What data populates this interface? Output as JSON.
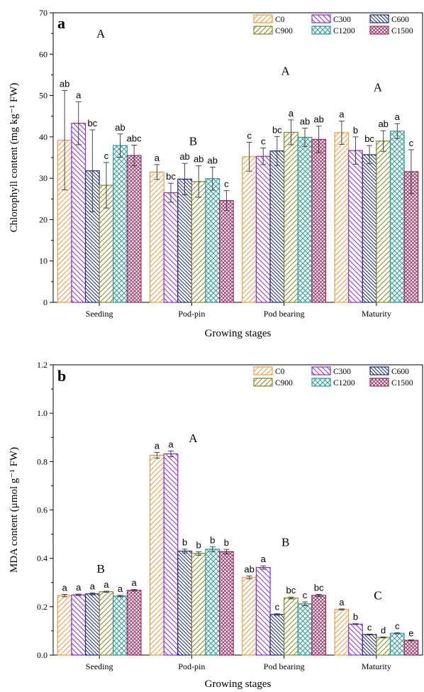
{
  "chart_data": [
    {
      "panel": "a",
      "type": "bar",
      "ylabel": "Chlorophyll content (mg kg⁻¹ FW)",
      "xlabel": "Growing stages",
      "ylim": [
        0,
        70
      ],
      "yticks": [
        0,
        10,
        20,
        30,
        40,
        50,
        60,
        70
      ],
      "ytick_labels": [
        "0",
        "10",
        "20",
        "30",
        "40",
        "50",
        "60",
        "70"
      ],
      "categories": [
        "Seeding",
        "Pod-pin",
        "Pod bearing",
        "Maturity"
      ],
      "group_letters": [
        "A",
        "B",
        "A",
        "A"
      ],
      "group_letter_y": [
        64,
        38,
        55,
        51
      ],
      "legend_position": "top-right",
      "series": [
        {
          "name": "C0",
          "values": [
            39.2,
            31.5,
            35.2,
            41.0
          ],
          "errors": [
            12.0,
            1.8,
            3.5,
            2.8
          ],
          "labels": [
            "ab",
            "a",
            "c",
            "a"
          ]
        },
        {
          "name": "C300",
          "values": [
            43.3,
            26.5,
            35.3,
            36.7
          ],
          "errors": [
            5.2,
            2.3,
            2.0,
            3.3
          ],
          "labels": [
            "a",
            "bc",
            "c",
            "b"
          ]
        },
        {
          "name": "C600",
          "values": [
            31.8,
            29.8,
            36.6,
            35.7
          ],
          "errors": [
            9.9,
            3.8,
            3.5,
            2.2
          ],
          "labels": [
            "bc",
            "ab",
            "bc",
            "bc"
          ]
        },
        {
          "name": "C900",
          "values": [
            28.3,
            29.2,
            41.1,
            39.0
          ],
          "errors": [
            5.5,
            3.8,
            3.0,
            2.5
          ],
          "labels": [
            "c",
            "ab",
            "a",
            "ab"
          ]
        },
        {
          "name": "C1200",
          "values": [
            37.9,
            29.9,
            39.9,
            41.4
          ],
          "errors": [
            2.8,
            2.8,
            2.2,
            1.8
          ],
          "labels": [
            "ab",
            "ab",
            "ab",
            "a"
          ]
        },
        {
          "name": "C1500",
          "values": [
            35.5,
            24.6,
            39.4,
            31.6
          ],
          "errors": [
            2.5,
            2.4,
            3.2,
            5.3
          ],
          "labels": [
            "abc",
            "c",
            "ab",
            "c"
          ]
        }
      ]
    },
    {
      "panel": "b",
      "type": "bar",
      "ylabel": "MDA content (μmol g⁻¹ FW)",
      "xlabel": "Growing stages",
      "ylim": [
        0,
        1.2
      ],
      "yticks": [
        0,
        0.2,
        0.4,
        0.6,
        0.8,
        1.0,
        1.2
      ],
      "ytick_labels": [
        "0.0",
        "0.2",
        "0.4",
        "0.6",
        "0.8",
        "1.0",
        "1.2"
      ],
      "categories": [
        "Seeding",
        "Pod-pin",
        "Pod bearing",
        "Maturity"
      ],
      "group_letters": [
        "B",
        "A",
        "B",
        "C"
      ],
      "group_letter_y": [
        0.34,
        0.88,
        0.45,
        0.23
      ],
      "legend_position": "top-right",
      "series": [
        {
          "name": "C0",
          "values": [
            0.246,
            0.826,
            0.321,
            0.189
          ],
          "errors": [
            0.005,
            0.012,
            0.006,
            0.002
          ],
          "labels": [
            "a",
            "a",
            "ab",
            "a"
          ]
        },
        {
          "name": "C300",
          "values": [
            0.249,
            0.832,
            0.362,
            0.128
          ],
          "errors": [
            0.003,
            0.012,
            0.007,
            0.002
          ],
          "labels": [
            "a",
            "a",
            "a",
            "b"
          ]
        },
        {
          "name": "C600",
          "values": [
            0.253,
            0.43,
            0.168,
            0.085
          ],
          "errors": [
            0.004,
            0.008,
            0.003,
            0.002
          ],
          "labels": [
            "a",
            "b",
            "c",
            "c"
          ]
        },
        {
          "name": "C900",
          "values": [
            0.262,
            0.42,
            0.236,
            0.073
          ],
          "errors": [
            0.002,
            0.007,
            0.004,
            0.002
          ],
          "labels": [
            "a",
            "b",
            "bc",
            "d"
          ]
        },
        {
          "name": "C1200",
          "values": [
            0.244,
            0.438,
            0.212,
            0.09
          ],
          "errors": [
            0.003,
            0.01,
            0.008,
            0.002
          ],
          "labels": [
            "a",
            "b",
            "c",
            "c"
          ]
        },
        {
          "name": "C1500",
          "values": [
            0.268,
            0.428,
            0.247,
            0.061
          ],
          "errors": [
            0.003,
            0.009,
            0.004,
            0.002
          ],
          "labels": [
            "a",
            "b",
            "bc",
            "e"
          ]
        }
      ]
    }
  ],
  "series_styles": [
    {
      "name": "C0",
      "color": "#f39a3f",
      "pattern": "slash"
    },
    {
      "name": "C300",
      "color": "#8a2be2",
      "pattern": "backslash"
    },
    {
      "name": "C600",
      "color": "#1c2a80",
      "pattern": "backslash-dense"
    },
    {
      "name": "C900",
      "color": "#7f8a1e",
      "pattern": "slash"
    },
    {
      "name": "C1200",
      "color": "#2a9b96",
      "pattern": "cross"
    },
    {
      "name": "C1500",
      "color": "#9b2a62",
      "pattern": "cross-dense"
    }
  ]
}
